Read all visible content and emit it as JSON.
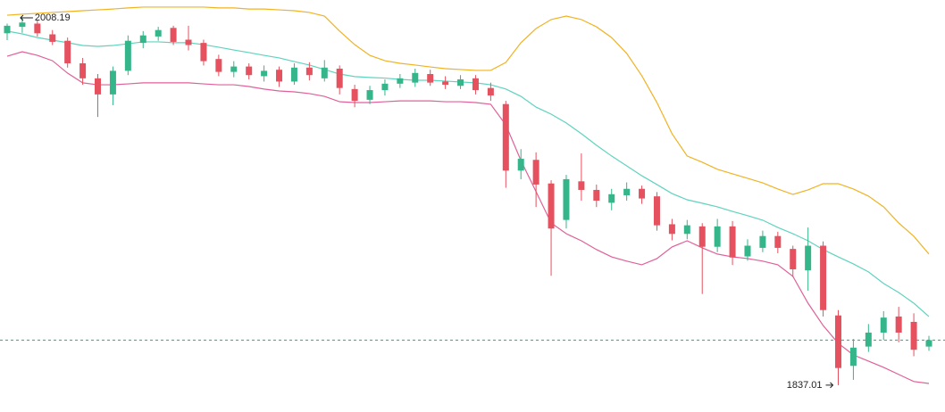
{
  "chart_data": {
    "type": "candlestick",
    "ylim": [
      1824.5,
      2016.5
    ],
    "up_color": "#34b58a",
    "down_color": "#e5515e",
    "open": [
      2001.0,
      2004.0,
      2005.5,
      2000.5,
      1997.5,
      1987.0,
      1980.0,
      1972.5,
      1983.5,
      1996.5,
      1999.5,
      2003.5,
      1998.0,
      1996.5,
      1989.0,
      1983.0,
      1985.5,
      1981.0,
      1984.0,
      1978.5,
      1985.0,
      1980.0,
      1984.5,
      1975.0,
      1970.0,
      1974.5,
      1977.5,
      1978.0,
      1982.0,
      1978.5,
      1976.5,
      1980.0,
      1975.5,
      1968.0,
      1937.0,
      1942.0,
      1931.0,
      1914.0,
      1932.0,
      1928.0,
      1922.0,
      1925.5,
      1928.5,
      1925.0,
      1912.0,
      1907.5,
      1911.0,
      1901.5,
      1911.0,
      1897.0,
      1901.0,
      1906.5,
      1900.5,
      1890.5,
      1902.0,
      1869.5,
      1846.0,
      1855.0,
      1861.5,
      1869.0,
      1866.5,
      1855.0
    ],
    "high": [
      2005.5,
      2008.19,
      2007.0,
      2002.5,
      1999.0,
      1989.5,
      1982.0,
      1985.5,
      2000.0,
      2002.0,
      2004.0,
      2004.5,
      2004.5,
      1998.0,
      1991.0,
      1988.0,
      1987.0,
      1986.0,
      1985.5,
      1987.0,
      1987.5,
      1988.5,
      1986.0,
      1977.0,
      1976.5,
      1979.5,
      1982.0,
      1984.5,
      1984.0,
      1981.0,
      1981.5,
      1981.5,
      1978.0,
      1969.5,
      1947.0,
      1945.5,
      1932.5,
      1935.0,
      1945.0,
      1930.5,
      1928.5,
      1931.5,
      1930.0,
      1927.0,
      1914.5,
      1914.0,
      1912.5,
      1914.5,
      1913.5,
      1905.0,
      1909.0,
      1908.5,
      1902.0,
      1910.5,
      1904.0,
      1872.0,
      1858.5,
      1865.5,
      1871.5,
      1873.5,
      1870.5,
      1860.0
    ],
    "low": [
      1997.8,
      2001.2,
      1999.5,
      1995.5,
      1985.0,
      1977.0,
      1962.0,
      1967.5,
      1981.5,
      1994.0,
      1997.5,
      1995.5,
      1993.0,
      1986.0,
      1981.0,
      1980.5,
      1979.5,
      1978.5,
      1976.0,
      1977.0,
      1979.0,
      1978.5,
      1972.5,
      1966.5,
      1968.0,
      1972.0,
      1975.5,
      1976.0,
      1976.5,
      1975.0,
      1975.0,
      1972.5,
      1969.5,
      1929.0,
      1933.0,
      1920.0,
      1888.0,
      1910.0,
      1923.0,
      1920.0,
      1918.5,
      1923.0,
      1921.5,
      1909.0,
      1904.5,
      1905.0,
      1879.5,
      1899.0,
      1893.0,
      1895.0,
      1899.0,
      1898.5,
      1887.5,
      1881.0,
      1869.0,
      1837.01,
      1839.5,
      1852.5,
      1858.0,
      1857.0,
      1850.5,
      1853.0
    ],
    "close": [
      2004.5,
      2006.0,
      2001.0,
      1997.0,
      1987.0,
      1980.0,
      1972.5,
      1983.5,
      1997.5,
      2000.0,
      2002.5,
      1997.0,
      1995.5,
      1988.0,
      1983.0,
      1985.5,
      1981.5,
      1983.5,
      1978.5,
      1985.0,
      1981.5,
      1985.0,
      1975.5,
      1969.5,
      1974.5,
      1977.5,
      1980.0,
      1982.5,
      1978.0,
      1977.0,
      1979.5,
      1974.5,
      1972.0,
      1937.0,
      1942.5,
      1930.5,
      1910.0,
      1933.0,
      1928.0,
      1923.0,
      1926.0,
      1928.5,
      1924.0,
      1911.5,
      1907.5,
      1911.5,
      1901.5,
      1911.0,
      1896.5,
      1902.0,
      1906.5,
      1901.0,
      1891.0,
      1902.0,
      1872.0,
      1845.0,
      1854.5,
      1861.5,
      1868.5,
      1861.5,
      1853.5,
      1858.0
    ],
    "bands": [
      {
        "color": "#f0b323",
        "values": [
          2009.4,
          2009.9,
          2010.3,
          2010.7,
          2011.1,
          2011.5,
          2011.9,
          2012.3,
          2012.8,
          2013.2,
          2013.2,
          2013.2,
          2013.2,
          2013.2,
          2012.8,
          2012.8,
          2012.3,
          2012.3,
          2011.9,
          2011.5,
          2010.7,
          2009.0,
          2002.0,
          1995.7,
          1990.7,
          1988.2,
          1987.0,
          1986.2,
          1985.3,
          1984.5,
          1984.1,
          1983.7,
          1983.7,
          1987.4,
          1996.6,
          2003.2,
          2007.4,
          2009.0,
          2007.4,
          2004.0,
          1999.0,
          1991.6,
          1981.2,
          1968.7,
          1954.2,
          1943.8,
          1940.9,
          1937.6,
          1935.5,
          1933.4,
          1931.3,
          1928.4,
          1925.9,
          1928.0,
          1930.9,
          1930.9,
          1928.4,
          1925.1,
          1920.1,
          1912.6,
          1906.4,
          1898.1
        ]
      },
      {
        "color": "#5fd3bf",
        "values": [
          2002.0,
          2000.7,
          1999.0,
          1997.8,
          1996.6,
          1995.3,
          1994.9,
          1995.3,
          1996.1,
          1997.0,
          1997.0,
          1996.6,
          1996.6,
          1995.7,
          1994.5,
          1993.2,
          1992.0,
          1990.7,
          1989.5,
          1987.8,
          1986.2,
          1984.1,
          1982.0,
          1980.8,
          1980.4,
          1980.1,
          1979.5,
          1979.1,
          1979.1,
          1978.7,
          1978.3,
          1977.9,
          1977.0,
          1975.0,
          1971.6,
          1966.6,
          1963.3,
          1959.2,
          1954.2,
          1948.8,
          1943.8,
          1939.2,
          1934.6,
          1930.5,
          1926.3,
          1923.4,
          1921.8,
          1920.1,
          1918.0,
          1916.0,
          1913.9,
          1910.5,
          1907.6,
          1904.3,
          1900.2,
          1896.8,
          1893.5,
          1889.8,
          1884.4,
          1880.2,
          1875.2,
          1869.0
        ]
      },
      {
        "color": "#e0609a",
        "values": [
          1990.3,
          1992.4,
          1990.7,
          1988.2,
          1982.4,
          1977.9,
          1977.0,
          1977.0,
          1977.4,
          1977.9,
          1977.9,
          1977.9,
          1977.9,
          1977.4,
          1977.0,
          1977.0,
          1976.2,
          1975.0,
          1974.1,
          1973.7,
          1972.9,
          1971.6,
          1969.1,
          1968.7,
          1968.7,
          1969.1,
          1969.5,
          1969.5,
          1969.5,
          1969.1,
          1969.1,
          1968.7,
          1967.9,
          1958.3,
          1941.7,
          1927.2,
          1912.6,
          1907.6,
          1904.3,
          1900.2,
          1896.8,
          1894.8,
          1893.1,
          1896.0,
          1901.4,
          1904.3,
          1901.0,
          1898.1,
          1896.8,
          1896.0,
          1894.8,
          1893.1,
          1887.7,
          1875.2,
          1864.8,
          1856.5,
          1851.1,
          1848.2,
          1845.3,
          1842.0,
          1838.7,
          1837.8
        ]
      }
    ],
    "last_line_color": "#2aa58a",
    "annotations": [
      {
        "label": "2008.19",
        "value": 2008.19,
        "index": 1,
        "side": "left"
      },
      {
        "label": "1837.01",
        "value": 1837.01,
        "index": 55,
        "side": "right"
      }
    ]
  }
}
